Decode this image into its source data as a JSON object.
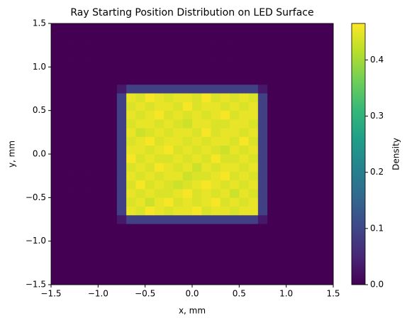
{
  "chart_data": {
    "type": "heatmap",
    "title": "Ray Starting Position Distribution on LED Surface",
    "x_label": "x, mm",
    "y_label": "y, mm",
    "colorbar_label": "Density",
    "colormap": "viridis",
    "xlim": [
      -1.5,
      1.5
    ],
    "ylim": [
      -1.5,
      1.5
    ],
    "clim": [
      0,
      0.465
    ],
    "xticks": [
      {
        "value": -1.5,
        "label": "−1.5"
      },
      {
        "value": -1.0,
        "label": "−1.0"
      },
      {
        "value": -0.5,
        "label": "−0.5"
      },
      {
        "value": 0,
        "label": "0.0"
      },
      0.5,
      {
        "value": 1.0,
        "label": "1.0"
      },
      1.5
    ],
    "yticks": [
      {
        "value": -1.5,
        "label": "−1.5"
      },
      {
        "value": -1.0,
        "label": "−1.0"
      },
      {
        "value": -0.5,
        "label": "−0.5"
      },
      {
        "value": 0,
        "label": "0.0"
      },
      0.5,
      {
        "value": 1.0,
        "label": "1.0"
      },
      1.5
    ],
    "cticks": [
      {
        "value": 0,
        "label": "0.0"
      },
      0.1,
      0.2,
      0.3,
      0.4
    ],
    "z": [
      [
        0,
        0,
        0,
        0,
        0,
        0,
        0,
        0,
        0,
        0,
        0,
        0,
        0,
        0,
        0,
        0,
        0,
        0,
        0,
        0,
        0,
        0,
        0,
        0,
        0,
        0,
        0,
        0,
        0,
        0
      ],
      [
        0,
        0,
        0,
        0,
        0,
        0,
        0,
        0,
        0,
        0,
        0,
        0,
        0,
        0,
        0,
        0,
        0,
        0,
        0,
        0,
        0,
        0,
        0,
        0,
        0,
        0,
        0,
        0,
        0,
        0
      ],
      [
        0,
        0,
        0,
        0,
        0,
        0,
        0,
        0,
        0,
        0,
        0,
        0,
        0,
        0,
        0,
        0,
        0,
        0,
        0,
        0,
        0,
        0,
        0,
        0,
        0,
        0,
        0,
        0,
        0,
        0
      ],
      [
        0,
        0,
        0,
        0,
        0,
        0,
        0,
        0,
        0,
        0,
        0,
        0,
        0,
        0,
        0,
        0,
        0,
        0,
        0,
        0,
        0,
        0,
        0,
        0,
        0,
        0,
        0,
        0,
        0,
        0
      ],
      [
        0,
        0,
        0,
        0,
        0,
        0,
        0,
        0,
        0,
        0,
        0,
        0,
        0,
        0,
        0,
        0,
        0,
        0,
        0,
        0,
        0,
        0,
        0,
        0,
        0,
        0,
        0,
        0,
        0,
        0
      ],
      [
        0,
        0,
        0,
        0,
        0,
        0,
        0,
        0,
        0,
        0,
        0,
        0,
        0,
        0,
        0,
        0,
        0,
        0,
        0,
        0,
        0,
        0,
        0,
        0,
        0,
        0,
        0,
        0,
        0,
        0
      ],
      [
        0,
        0,
        0,
        0,
        0,
        0,
        0,
        0,
        0,
        0,
        0,
        0,
        0,
        0,
        0,
        0,
        0,
        0,
        0,
        0,
        0,
        0,
        0,
        0,
        0,
        0,
        0,
        0,
        0,
        0
      ],
      [
        0,
        0,
        0,
        0,
        0,
        0,
        0,
        0.03,
        0.09,
        0.09,
        0.09,
        0.09,
        0.09,
        0.09,
        0.09,
        0.09,
        0.09,
        0.09,
        0.09,
        0.09,
        0.09,
        0.09,
        0.03,
        0,
        0,
        0,
        0,
        0,
        0,
        0
      ],
      [
        0,
        0,
        0,
        0,
        0,
        0,
        0,
        0.09,
        0.45,
        0.44,
        0.46,
        0.45,
        0.44,
        0.45,
        0.45,
        0.46,
        0.44,
        0.45,
        0.45,
        0.44,
        0.45,
        0.45,
        0.09,
        0,
        0,
        0,
        0,
        0,
        0,
        0
      ],
      [
        0,
        0,
        0,
        0,
        0,
        0,
        0,
        0.09,
        0.44,
        0.45,
        0.43,
        0.45,
        0.46,
        0.44,
        0.45,
        0.44,
        0.45,
        0.46,
        0.44,
        0.45,
        0.44,
        0.45,
        0.09,
        0,
        0,
        0,
        0,
        0,
        0,
        0
      ],
      [
        0,
        0,
        0,
        0,
        0,
        0,
        0,
        0.09,
        0.45,
        0.44,
        0.45,
        0.44,
        0.44,
        0.45,
        0.46,
        0.44,
        0.45,
        0.44,
        0.45,
        0.43,
        0.45,
        0.44,
        0.09,
        0,
        0,
        0,
        0,
        0,
        0,
        0
      ],
      [
        0,
        0,
        0,
        0,
        0,
        0,
        0,
        0.09,
        0.44,
        0.46,
        0.44,
        0.45,
        0.44,
        0.43,
        0.44,
        0.45,
        0.46,
        0.45,
        0.44,
        0.45,
        0.44,
        0.45,
        0.09,
        0,
        0,
        0,
        0,
        0,
        0,
        0
      ],
      [
        0,
        0,
        0,
        0,
        0,
        0,
        0,
        0.09,
        0.45,
        0.44,
        0.45,
        0.44,
        0.45,
        0.45,
        0.43,
        0.44,
        0.44,
        0.45,
        0.46,
        0.44,
        0.45,
        0.44,
        0.09,
        0,
        0,
        0,
        0,
        0,
        0,
        0
      ],
      [
        0,
        0,
        0,
        0,
        0,
        0,
        0,
        0.09,
        0.44,
        0.45,
        0.44,
        0.46,
        0.45,
        0.44,
        0.45,
        0.43,
        0.45,
        0.44,
        0.45,
        0.45,
        0.44,
        0.45,
        0.09,
        0,
        0,
        0,
        0,
        0,
        0,
        0
      ],
      [
        0,
        0,
        0,
        0,
        0,
        0,
        0,
        0.09,
        0.46,
        0.44,
        0.45,
        0.44,
        0.44,
        0.45,
        0.44,
        0.45,
        0.44,
        0.46,
        0.44,
        0.44,
        0.45,
        0.44,
        0.09,
        0,
        0,
        0,
        0,
        0,
        0,
        0
      ],
      [
        0,
        0,
        0,
        0,
        0,
        0,
        0,
        0.09,
        0.45,
        0.45,
        0.44,
        0.45,
        0.46,
        0.44,
        0.45,
        0.44,
        0.45,
        0.44,
        0.43,
        0.45,
        0.44,
        0.45,
        0.09,
        0,
        0,
        0,
        0,
        0,
        0,
        0
      ],
      [
        0,
        0,
        0,
        0,
        0,
        0,
        0,
        0.09,
        0.44,
        0.45,
        0.46,
        0.44,
        0.45,
        0.45,
        0.44,
        0.45,
        0.44,
        0.45,
        0.45,
        0.44,
        0.46,
        0.44,
        0.09,
        0,
        0,
        0,
        0,
        0,
        0,
        0
      ],
      [
        0,
        0,
        0,
        0,
        0,
        0,
        0,
        0.09,
        0.45,
        0.43,
        0.44,
        0.45,
        0.44,
        0.45,
        0.45,
        0.44,
        0.46,
        0.44,
        0.45,
        0.45,
        0.44,
        0.45,
        0.09,
        0,
        0,
        0,
        0,
        0,
        0,
        0
      ],
      [
        0,
        0,
        0,
        0,
        0,
        0,
        0,
        0.09,
        0.44,
        0.45,
        0.45,
        0.44,
        0.45,
        0.44,
        0.43,
        0.45,
        0.45,
        0.44,
        0.44,
        0.45,
        0.45,
        0.44,
        0.09,
        0,
        0,
        0,
        0,
        0,
        0,
        0
      ],
      [
        0,
        0,
        0,
        0,
        0,
        0,
        0,
        0.09,
        0.45,
        0.44,
        0.45,
        0.46,
        0.44,
        0.45,
        0.44,
        0.45,
        0.44,
        0.45,
        0.46,
        0.44,
        0.45,
        0.45,
        0.09,
        0,
        0,
        0,
        0,
        0,
        0,
        0
      ],
      [
        0,
        0,
        0,
        0,
        0,
        0,
        0,
        0.09,
        0.44,
        0.45,
        0.44,
        0.45,
        0.45,
        0.44,
        0.46,
        0.44,
        0.45,
        0.45,
        0.44,
        0.45,
        0.44,
        0.45,
        0.09,
        0,
        0,
        0,
        0,
        0,
        0,
        0
      ],
      [
        0,
        0,
        0,
        0,
        0,
        0,
        0,
        0.09,
        0.45,
        0.44,
        0.46,
        0.45,
        0.44,
        0.45,
        0.45,
        0.44,
        0.46,
        0.44,
        0.45,
        0.44,
        0.45,
        0.44,
        0.09,
        0,
        0,
        0,
        0,
        0,
        0,
        0
      ],
      [
        0,
        0,
        0,
        0,
        0,
        0,
        0,
        0.03,
        0.09,
        0.09,
        0.09,
        0.09,
        0.09,
        0.09,
        0.09,
        0.09,
        0.09,
        0.09,
        0.09,
        0.09,
        0.09,
        0.09,
        0.03,
        0,
        0,
        0,
        0,
        0,
        0,
        0
      ],
      [
        0,
        0,
        0,
        0,
        0,
        0,
        0,
        0,
        0,
        0,
        0,
        0,
        0,
        0,
        0,
        0,
        0,
        0,
        0,
        0,
        0,
        0,
        0,
        0,
        0,
        0,
        0,
        0,
        0,
        0
      ],
      [
        0,
        0,
        0,
        0,
        0,
        0,
        0,
        0,
        0,
        0,
        0,
        0,
        0,
        0,
        0,
        0,
        0,
        0,
        0,
        0,
        0,
        0,
        0,
        0,
        0,
        0,
        0,
        0,
        0,
        0
      ],
      [
        0,
        0,
        0,
        0,
        0,
        0,
        0,
        0,
        0,
        0,
        0,
        0,
        0,
        0,
        0,
        0,
        0,
        0,
        0,
        0,
        0,
        0,
        0,
        0,
        0,
        0,
        0,
        0,
        0,
        0
      ],
      [
        0,
        0,
        0,
        0,
        0,
        0,
        0,
        0,
        0,
        0,
        0,
        0,
        0,
        0,
        0,
        0,
        0,
        0,
        0,
        0,
        0,
        0,
        0,
        0,
        0,
        0,
        0,
        0,
        0,
        0
      ],
      [
        0,
        0,
        0,
        0,
        0,
        0,
        0,
        0,
        0,
        0,
        0,
        0,
        0,
        0,
        0,
        0,
        0,
        0,
        0,
        0,
        0,
        0,
        0,
        0,
        0,
        0,
        0,
        0,
        0,
        0
      ],
      [
        0,
        0,
        0,
        0,
        0,
        0,
        0,
        0,
        0,
        0,
        0,
        0,
        0,
        0,
        0,
        0,
        0,
        0,
        0,
        0,
        0,
        0,
        0,
        0,
        0,
        0,
        0,
        0,
        0,
        0
      ],
      [
        0,
        0,
        0,
        0,
        0,
        0,
        0,
        0,
        0,
        0,
        0,
        0,
        0,
        0,
        0,
        0,
        0,
        0,
        0,
        0,
        0,
        0,
        0,
        0,
        0,
        0,
        0,
        0,
        0,
        0
      ]
    ]
  }
}
